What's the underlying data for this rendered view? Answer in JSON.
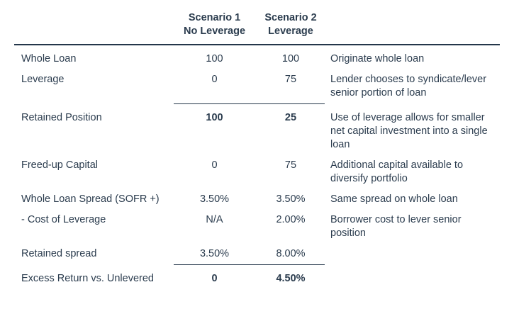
{
  "colors": {
    "text": "#2b3c4e",
    "rule": "#24364a",
    "background": "#ffffff"
  },
  "table": {
    "header": {
      "scenario1": {
        "line1": "Scenario 1",
        "line2": "No Leverage"
      },
      "scenario2": {
        "line1": "Scenario 2",
        "line2": "Leverage"
      }
    },
    "rows": [
      {
        "label": "Whole Loan",
        "s1": "100",
        "s2": "100",
        "note": "Originate whole loan"
      },
      {
        "label": "Leverage",
        "s1": "0",
        "s2": "75",
        "note": "Lender chooses to syndicate/lever senior portion of loan"
      },
      {
        "label": "Retained Position",
        "s1": "100",
        "s2": "25",
        "note": "Use of leverage allows for smaller net capital investment into a single loan"
      },
      {
        "label": "Freed-up Capital",
        "s1": "0",
        "s2": "75",
        "note": "Additional capital available to diversify portfolio"
      },
      {
        "label": "Whole Loan Spread (SOFR +)",
        "s1": "3.50%",
        "s2": "3.50%",
        "note": "Same spread on whole loan"
      },
      {
        "label": "- Cost of Leverage",
        "s1": "N/A",
        "s2": "2.00%",
        "note": "Borrower cost to lever senior position"
      },
      {
        "label": "Retained spread",
        "s1": "3.50%",
        "s2": "8.00%",
        "note": ""
      },
      {
        "label": "Excess Return vs. Unlevered",
        "s1": "0",
        "s2": "4.50%",
        "note": ""
      }
    ]
  }
}
